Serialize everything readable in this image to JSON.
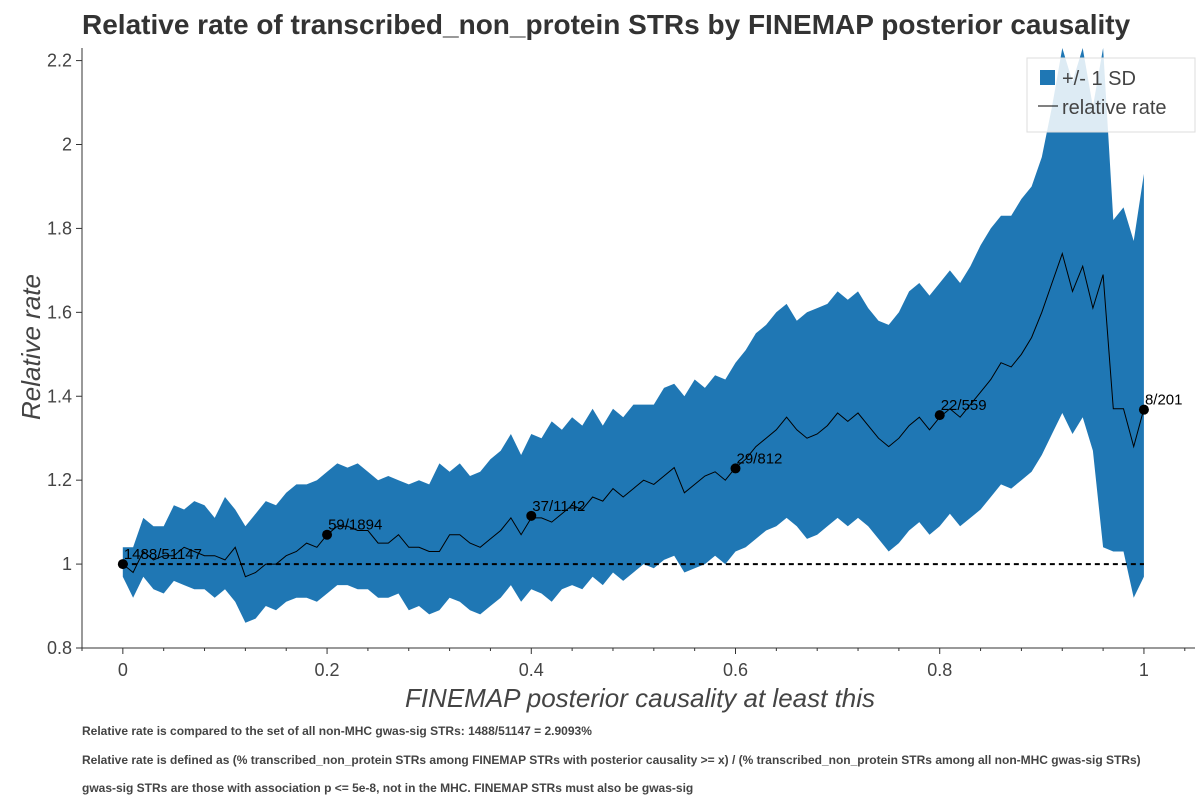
{
  "chart_data": {
    "type": "area",
    "title": "Relative rate of transcribed_non_protein STRs by FINEMAP posterior causality",
    "xlabel": "FINEMAP posterior causality at least this",
    "ylabel": "Relative rate",
    "xlim": [
      -0.04,
      1.05
    ],
    "ylim": [
      0.8,
      2.23
    ],
    "xticks": [
      0,
      0.2,
      0.4,
      0.6,
      0.8,
      1
    ],
    "xtick_labels": [
      "0",
      "0.2",
      "0.4",
      "0.6",
      "0.8",
      "1"
    ],
    "yticks": [
      0.8,
      1,
      1.2,
      1.4,
      1.6,
      1.8,
      2,
      2.2
    ],
    "ytick_labels": [
      "0.8",
      "1",
      "1.2",
      "1.4",
      "1.6",
      "1.8",
      "2",
      "2.2"
    ],
    "reference_line_y": 1,
    "colors": {
      "band": "#1f77b4",
      "line": "#000000",
      "reference": "#000000",
      "points": "#000000"
    },
    "legend": {
      "position": "top-right",
      "entries": [
        {
          "label": "+/- 1 SD",
          "style": "band"
        },
        {
          "label": "relative rate",
          "style": "line"
        }
      ]
    },
    "series": [
      {
        "name": "relative rate",
        "x": [
          0,
          0.01,
          0.02,
          0.03,
          0.04,
          0.05,
          0.06,
          0.07,
          0.08,
          0.09,
          0.1,
          0.11,
          0.12,
          0.13,
          0.14,
          0.15,
          0.16,
          0.17,
          0.18,
          0.19,
          0.2,
          0.21,
          0.22,
          0.23,
          0.24,
          0.25,
          0.26,
          0.27,
          0.28,
          0.29,
          0.3,
          0.31,
          0.32,
          0.33,
          0.34,
          0.35,
          0.36,
          0.37,
          0.38,
          0.39,
          0.4,
          0.41,
          0.42,
          0.43,
          0.44,
          0.45,
          0.46,
          0.47,
          0.48,
          0.49,
          0.5,
          0.51,
          0.52,
          0.53,
          0.54,
          0.55,
          0.56,
          0.57,
          0.58,
          0.59,
          0.6,
          0.61,
          0.62,
          0.63,
          0.64,
          0.65,
          0.66,
          0.67,
          0.68,
          0.69,
          0.7,
          0.71,
          0.72,
          0.73,
          0.74,
          0.75,
          0.76,
          0.77,
          0.78,
          0.79,
          0.8,
          0.81,
          0.82,
          0.83,
          0.84,
          0.85,
          0.86,
          0.87,
          0.88,
          0.89,
          0.9,
          0.91,
          0.92,
          0.93,
          0.94,
          0.95,
          0.96,
          0.97,
          0.98,
          0.99,
          1
        ],
        "y": [
          1.0,
          0.98,
          1.03,
          1.01,
          1.02,
          1.02,
          1.04,
          1.03,
          1.02,
          1.02,
          1.01,
          1.04,
          0.97,
          0.98,
          1.0,
          1.0,
          1.02,
          1.03,
          1.05,
          1.04,
          1.07,
          1.09,
          1.09,
          1.08,
          1.08,
          1.05,
          1.05,
          1.07,
          1.04,
          1.04,
          1.03,
          1.03,
          1.07,
          1.07,
          1.05,
          1.04,
          1.06,
          1.08,
          1.11,
          1.07,
          1.11,
          1.11,
          1.1,
          1.12,
          1.14,
          1.13,
          1.16,
          1.15,
          1.18,
          1.16,
          1.18,
          1.2,
          1.19,
          1.21,
          1.23,
          1.17,
          1.19,
          1.21,
          1.22,
          1.2,
          1.23,
          1.25,
          1.28,
          1.3,
          1.32,
          1.35,
          1.32,
          1.3,
          1.31,
          1.33,
          1.36,
          1.34,
          1.36,
          1.33,
          1.3,
          1.28,
          1.3,
          1.33,
          1.35,
          1.32,
          1.35,
          1.37,
          1.35,
          1.38,
          1.41,
          1.44,
          1.48,
          1.47,
          1.5,
          1.54,
          1.6,
          1.67,
          1.74,
          1.65,
          1.71,
          1.61,
          1.69,
          1.37,
          1.37,
          1.28,
          1.37
        ]
      },
      {
        "name": "+/- 1 SD",
        "x": [
          0,
          0.01,
          0.02,
          0.03,
          0.04,
          0.05,
          0.06,
          0.07,
          0.08,
          0.09,
          0.1,
          0.11,
          0.12,
          0.13,
          0.14,
          0.15,
          0.16,
          0.17,
          0.18,
          0.19,
          0.2,
          0.21,
          0.22,
          0.23,
          0.24,
          0.25,
          0.26,
          0.27,
          0.28,
          0.29,
          0.3,
          0.31,
          0.32,
          0.33,
          0.34,
          0.35,
          0.36,
          0.37,
          0.38,
          0.39,
          0.4,
          0.41,
          0.42,
          0.43,
          0.44,
          0.45,
          0.46,
          0.47,
          0.48,
          0.49,
          0.5,
          0.51,
          0.52,
          0.53,
          0.54,
          0.55,
          0.56,
          0.57,
          0.58,
          0.59,
          0.6,
          0.61,
          0.62,
          0.63,
          0.64,
          0.65,
          0.66,
          0.67,
          0.68,
          0.69,
          0.7,
          0.71,
          0.72,
          0.73,
          0.74,
          0.75,
          0.76,
          0.77,
          0.78,
          0.79,
          0.8,
          0.81,
          0.82,
          0.83,
          0.84,
          0.85,
          0.86,
          0.87,
          0.88,
          0.89,
          0.9,
          0.91,
          0.92,
          0.93,
          0.94,
          0.95,
          0.96,
          0.97,
          0.98,
          0.99,
          1
        ],
        "upper": [
          1.04,
          1.04,
          1.11,
          1.09,
          1.09,
          1.14,
          1.13,
          1.15,
          1.14,
          1.11,
          1.16,
          1.13,
          1.09,
          1.12,
          1.15,
          1.14,
          1.17,
          1.19,
          1.19,
          1.2,
          1.22,
          1.24,
          1.23,
          1.24,
          1.22,
          1.2,
          1.21,
          1.2,
          1.19,
          1.2,
          1.19,
          1.24,
          1.22,
          1.24,
          1.21,
          1.22,
          1.25,
          1.27,
          1.31,
          1.26,
          1.31,
          1.3,
          1.34,
          1.32,
          1.35,
          1.33,
          1.37,
          1.33,
          1.37,
          1.35,
          1.38,
          1.38,
          1.38,
          1.42,
          1.43,
          1.4,
          1.44,
          1.42,
          1.45,
          1.44,
          1.48,
          1.51,
          1.55,
          1.57,
          1.6,
          1.62,
          1.58,
          1.6,
          1.61,
          1.62,
          1.65,
          1.63,
          1.65,
          1.61,
          1.58,
          1.57,
          1.6,
          1.65,
          1.67,
          1.64,
          1.67,
          1.7,
          1.67,
          1.71,
          1.76,
          1.8,
          1.83,
          1.83,
          1.87,
          1.9,
          1.97,
          2.09,
          2.23,
          2.15,
          2.24,
          2.09,
          2.23,
          1.82,
          1.85,
          1.77,
          1.93
        ],
        "lower": [
          0.97,
          0.92,
          0.97,
          0.94,
          0.93,
          0.96,
          0.95,
          0.94,
          0.94,
          0.92,
          0.94,
          0.91,
          0.86,
          0.87,
          0.9,
          0.89,
          0.91,
          0.92,
          0.92,
          0.91,
          0.93,
          0.95,
          0.95,
          0.94,
          0.94,
          0.92,
          0.92,
          0.93,
          0.89,
          0.9,
          0.88,
          0.89,
          0.92,
          0.91,
          0.89,
          0.88,
          0.9,
          0.92,
          0.95,
          0.91,
          0.94,
          0.93,
          0.91,
          0.94,
          0.95,
          0.94,
          0.97,
          0.95,
          0.98,
          0.96,
          0.98,
          1.0,
          0.99,
          1.01,
          1.02,
          0.98,
          0.99,
          1.0,
          1.02,
          1.0,
          1.03,
          1.04,
          1.06,
          1.08,
          1.09,
          1.11,
          1.09,
          1.06,
          1.07,
          1.09,
          1.11,
          1.09,
          1.11,
          1.09,
          1.06,
          1.03,
          1.05,
          1.08,
          1.1,
          1.07,
          1.09,
          1.12,
          1.09,
          1.11,
          1.13,
          1.16,
          1.19,
          1.18,
          1.2,
          1.22,
          1.26,
          1.31,
          1.36,
          1.31,
          1.35,
          1.27,
          1.04,
          1.03,
          1.03,
          0.92,
          0.97
        ]
      }
    ],
    "points": [
      {
        "x": 0,
        "y": 1.0,
        "label": "1488/51147"
      },
      {
        "x": 0.2,
        "y": 1.07,
        "label": "59/1894"
      },
      {
        "x": 0.4,
        "y": 1.115,
        "label": "37/1142"
      },
      {
        "x": 0.6,
        "y": 1.228,
        "label": "29/812"
      },
      {
        "x": 0.8,
        "y": 1.355,
        "label": "22/559"
      },
      {
        "x": 1,
        "y": 1.368,
        "label": "8/201"
      }
    ],
    "footnotes": [
      "Relative rate is compared to the set of all non-MHC gwas-sig STRs: 1488/51147 = 2.9093%",
      "Relative rate is defined as (% transcribed_non_protein STRs among FINEMAP STRs with posterior causality >= x) / (% transcribed_non_protein STRs among all non-MHC gwas-sig STRs)",
      "gwas-sig STRs are those with association p <= 5e-8, not in the MHC. FINEMAP STRs must also be gwas-sig"
    ]
  }
}
